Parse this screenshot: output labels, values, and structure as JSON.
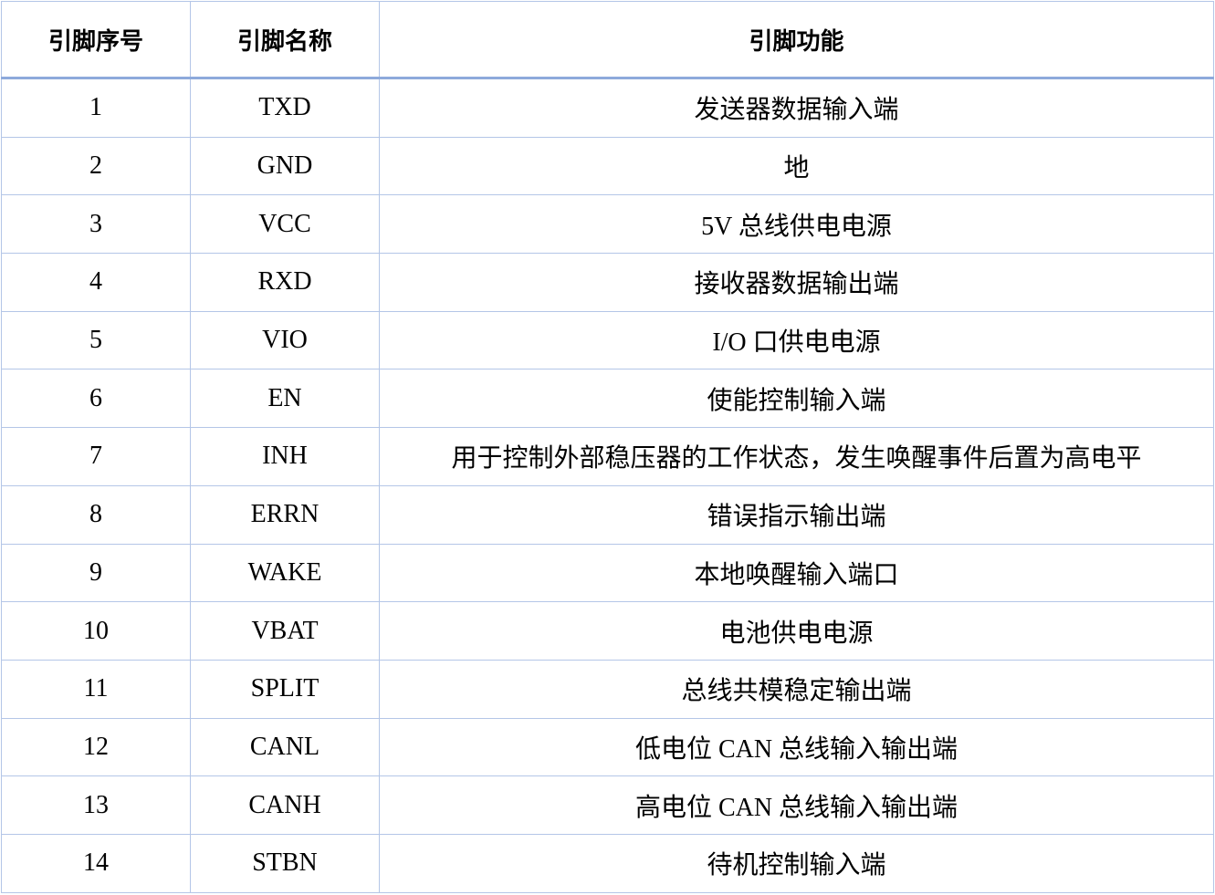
{
  "headers": [
    "引脚序号",
    "引脚名称",
    "引脚功能"
  ],
  "rows": [
    [
      "1",
      "TXD",
      "发送器数据输入端"
    ],
    [
      "2",
      "GND",
      "地"
    ],
    [
      "3",
      "VCC",
      "5V 总线供电电源"
    ],
    [
      "4",
      "RXD",
      "接收器数据输出端"
    ],
    [
      "5",
      "VIO",
      "I/O 口供电电源"
    ],
    [
      "6",
      "EN",
      "使能控制输入端"
    ],
    [
      "7",
      "INH",
      "用于控制外部稳压器的工作状态，发生唤醒事件后置为高电平"
    ],
    [
      "8",
      "ERRN",
      "错误指示输出端"
    ],
    [
      "9",
      "WAKE",
      "本地唤醒输入端口"
    ],
    [
      "10",
      "VBAT",
      "电池供电电源"
    ],
    [
      "11",
      "SPLIT",
      "总线共模稳定输出端"
    ],
    [
      "12",
      "CANL",
      "低电位 CAN 总线输入输出端"
    ],
    [
      "13",
      "CANH",
      "高电位 CAN 总线输入输出端"
    ],
    [
      "14",
      "STBN",
      "待机控制输入端"
    ]
  ],
  "colors": {
    "border": "#b4c6e7",
    "header_rule": "#8eaadb"
  }
}
